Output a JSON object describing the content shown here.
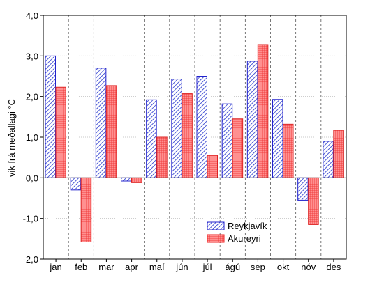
{
  "chart_data": {
    "type": "bar",
    "title": "",
    "xlabel": "",
    "ylabel": "vik frá meðallagi °C",
    "categories": [
      "jan",
      "feb",
      "mar",
      "apr",
      "maí",
      "jún",
      "júl",
      "ágú",
      "sep",
      "okt",
      "nóv",
      "des"
    ],
    "ylim": [
      -2.0,
      4.0
    ],
    "yticks": [
      "-2,0",
      "-1,0",
      "0,0",
      "1,0",
      "2,0",
      "3,0",
      "4,0"
    ],
    "grid": true,
    "legend_placement": "bottom-right",
    "series": [
      {
        "name": "Reykjavík",
        "color": "#2222cc",
        "pattern": "hatch",
        "values": [
          3.0,
          -0.3,
          2.7,
          -0.08,
          1.92,
          2.43,
          2.5,
          1.82,
          2.87,
          1.93,
          -0.55,
          0.9
        ]
      },
      {
        "name": "Akureyri",
        "color": "#ee2222",
        "fill": "#ff8888",
        "pattern": "cross",
        "values": [
          2.23,
          -1.58,
          2.27,
          -0.12,
          1.0,
          2.07,
          0.55,
          1.45,
          3.28,
          1.32,
          -1.15,
          1.17
        ]
      }
    ]
  }
}
